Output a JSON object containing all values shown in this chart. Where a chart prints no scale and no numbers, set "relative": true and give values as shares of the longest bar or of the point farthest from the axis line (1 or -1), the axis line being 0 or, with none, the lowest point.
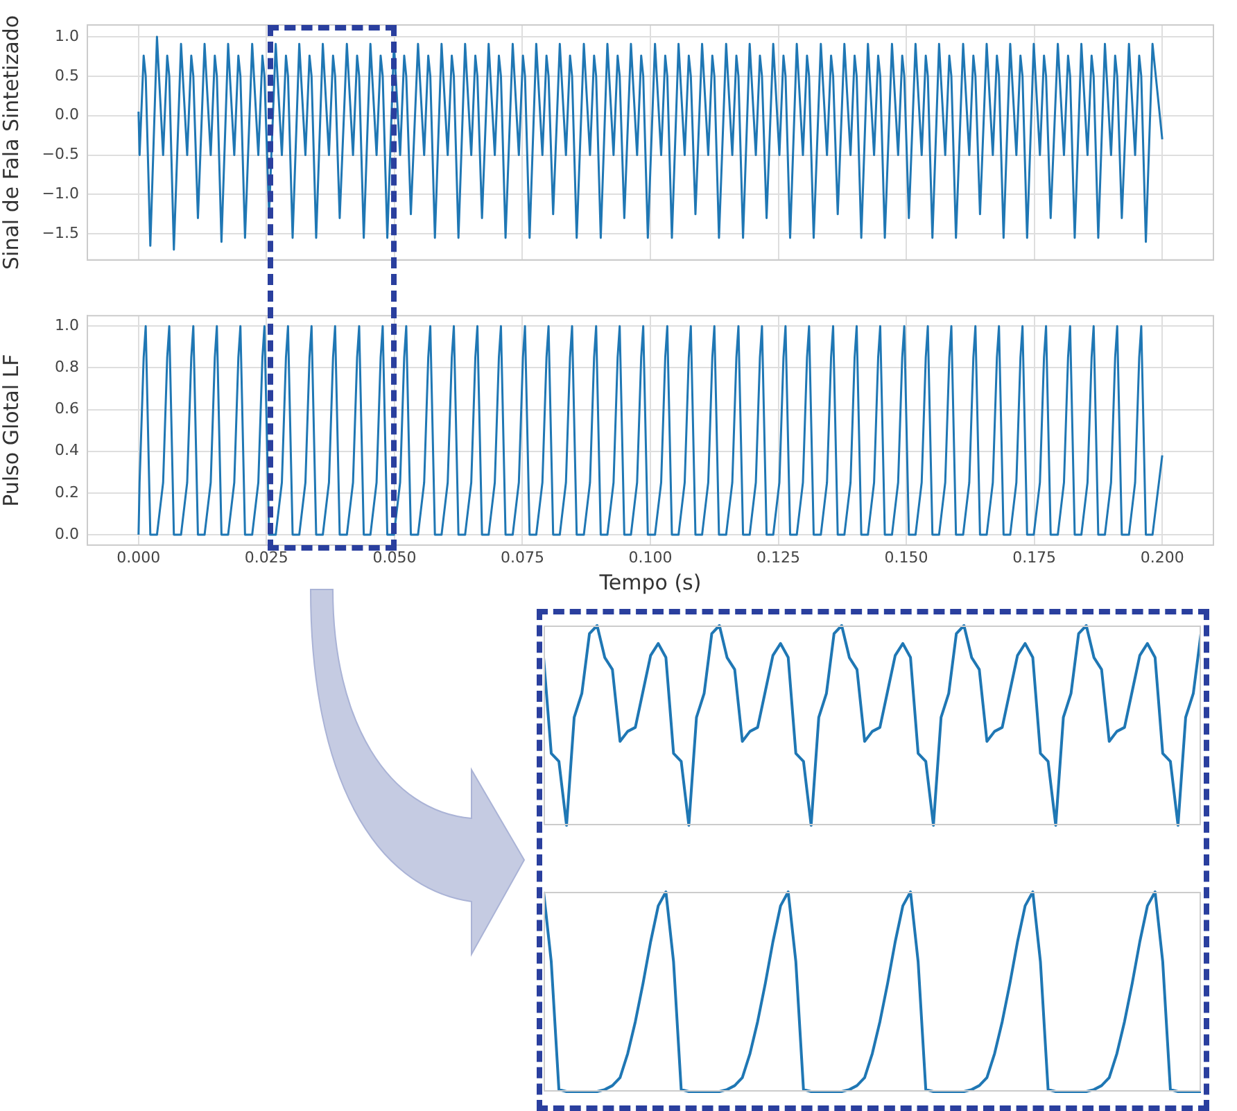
{
  "chart_data": [
    {
      "type": "line",
      "ylabel": "Sinal de Fala Sintetizado",
      "xlim": [
        -0.01,
        0.21
      ],
      "ylim": [
        -1.83,
        1.15
      ],
      "tick_labels": "y",
      "grid": true,
      "marker": "none",
      "xticks": [
        0,
        0.025,
        0.05,
        0.075,
        0.1,
        0.125,
        0.15,
        0.175,
        0.2
      ],
      "yticks": [
        {
          "value": -1.5,
          "label": "−1.5"
        },
        {
          "value": -1,
          "label": "−1.0"
        },
        {
          "value": -0.5,
          "label": "−0.5"
        },
        {
          "value": 0,
          "label": "0.0"
        },
        {
          "value": 0.5,
          "label": "0.5"
        },
        {
          "value": 1,
          "label": "1.0"
        }
      ],
      "x": [
        0,
        0.0002,
        0.001,
        0.0014,
        0.0023,
        0.0036,
        0.0048,
        0.0056,
        0.006,
        0.0069,
        0.0083,
        0.0095,
        0.0103,
        0.0107,
        0.0116,
        0.0129,
        0.0141,
        0.0149,
        0.0153,
        0.0162,
        0.0175,
        0.0187,
        0.0195,
        0.0199,
        0.0208,
        0.0222,
        0.0234,
        0.0242,
        0.0246,
        0.0255,
        0.0268,
        0.028,
        0.0288,
        0.0292,
        0.0301,
        0.0314,
        0.0326,
        0.0334,
        0.0338,
        0.0347,
        0.036,
        0.0372,
        0.038,
        0.0384,
        0.0393,
        0.0407,
        0.0419,
        0.0427,
        0.0431,
        0.044,
        0.0453,
        0.0465,
        0.0473,
        0.0477,
        0.0486,
        0.0499,
        0.0511,
        0.0519,
        0.0523,
        0.0532,
        0.0546,
        0.0558,
        0.0566,
        0.057,
        0.0579,
        0.0592,
        0.0604,
        0.0612,
        0.0616,
        0.0625,
        0.0638,
        0.065,
        0.0658,
        0.0662,
        0.0671,
        0.0684,
        0.0696,
        0.0704,
        0.0708,
        0.0717,
        0.0731,
        0.0743,
        0.0751,
        0.0755,
        0.0764,
        0.0777,
        0.0789,
        0.0797,
        0.0801,
        0.081,
        0.0823,
        0.0835,
        0.0843,
        0.0847,
        0.0856,
        0.087,
        0.0882,
        0.089,
        0.0894,
        0.0903,
        0.0916,
        0.0928,
        0.0936,
        0.094,
        0.0949,
        0.0962,
        0.0974,
        0.0982,
        0.0986,
        0.0995,
        0.1009,
        0.1021,
        0.1029,
        0.1033,
        0.1042,
        0.1055,
        0.1067,
        0.1075,
        0.1079,
        0.1088,
        0.1101,
        0.1113,
        0.1121,
        0.1125,
        0.1134,
        0.1148,
        0.116,
        0.1168,
        0.1172,
        0.1181,
        0.1194,
        0.1206,
        0.1214,
        0.1218,
        0.1227,
        0.124,
        0.1252,
        0.126,
        0.1264,
        0.1273,
        0.1286,
        0.1298,
        0.1306,
        0.131,
        0.1319,
        0.1333,
        0.1345,
        0.1353,
        0.1357,
        0.1366,
        0.1379,
        0.1391,
        0.1399,
        0.1403,
        0.1412,
        0.1425,
        0.1437,
        0.1445,
        0.1449,
        0.1458,
        0.1472,
        0.1484,
        0.1492,
        0.1496,
        0.1505,
        0.1518,
        0.153,
        0.1538,
        0.1542,
        0.1551,
        0.1564,
        0.1576,
        0.1584,
        0.1588,
        0.1597,
        0.1611,
        0.1623,
        0.1631,
        0.1635,
        0.1644,
        0.1657,
        0.1669,
        0.1677,
        0.1681,
        0.169,
        0.1703,
        0.1715,
        0.1723,
        0.1727,
        0.1736,
        0.1749,
        0.1761,
        0.1769,
        0.1773,
        0.1782,
        0.1796,
        0.1808,
        0.1816,
        0.182,
        0.1829,
        0.1842,
        0.1854,
        0.1862,
        0.1866,
        0.1875,
        0.1888,
        0.19,
        0.1908,
        0.1912,
        0.1921,
        0.1935,
        0.1947,
        0.1955,
        0.1959,
        0.1968,
        0.1981,
        0.2
      ],
      "series": [
        {
          "color": "#1f77b4",
          "values": [
            0.05,
            -0.5,
            0.76,
            0.5,
            -1.65,
            1.0,
            -0.5,
            0.76,
            0.5,
            -1.7,
            0.91,
            -0.5,
            0.76,
            0.5,
            -1.3,
            0.91,
            -0.5,
            0.76,
            0.5,
            -1.6,
            0.91,
            -0.5,
            0.76,
            0.5,
            -1.55,
            0.91,
            -0.5,
            0.76,
            0.5,
            -1.25,
            0.91,
            -0.5,
            0.76,
            0.5,
            -1.55,
            0.91,
            -0.5,
            0.76,
            0.5,
            -1.55,
            0.91,
            -0.5,
            0.76,
            0.5,
            -1.3,
            0.91,
            -0.5,
            0.76,
            0.5,
            -1.55,
            0.91,
            -0.5,
            0.76,
            0.5,
            -1.55,
            0.91,
            -0.5,
            0.76,
            0.5,
            -1.25,
            0.91,
            -0.5,
            0.76,
            0.5,
            -1.55,
            0.91,
            -0.5,
            0.76,
            0.5,
            -1.55,
            0.91,
            -0.5,
            0.76,
            0.5,
            -1.3,
            0.91,
            -0.5,
            0.76,
            0.5,
            -1.55,
            0.91,
            -0.5,
            0.76,
            0.5,
            -1.55,
            0.91,
            -0.5,
            0.76,
            0.5,
            -1.25,
            0.91,
            -0.5,
            0.76,
            0.5,
            -1.55,
            0.91,
            -0.5,
            0.76,
            0.5,
            -1.55,
            0.91,
            -0.5,
            0.76,
            0.5,
            -1.3,
            0.91,
            -0.5,
            0.76,
            0.5,
            -1.55,
            0.91,
            -0.5,
            0.76,
            0.5,
            -1.55,
            0.91,
            -0.5,
            0.76,
            0.5,
            -1.25,
            0.91,
            -0.5,
            0.76,
            0.5,
            -1.55,
            0.91,
            -0.5,
            0.76,
            0.5,
            -1.55,
            0.91,
            -0.5,
            0.76,
            0.5,
            -1.3,
            0.91,
            -0.5,
            0.76,
            0.5,
            -1.55,
            0.91,
            -0.5,
            0.76,
            0.5,
            -1.55,
            0.91,
            -0.5,
            0.76,
            0.5,
            -1.25,
            0.91,
            -0.5,
            0.76,
            0.5,
            -1.55,
            0.91,
            -0.5,
            0.76,
            0.5,
            -1.55,
            0.91,
            -0.5,
            0.76,
            0.5,
            -1.3,
            0.91,
            -0.5,
            0.76,
            0.5,
            -1.55,
            0.91,
            -0.5,
            0.76,
            0.5,
            -1.55,
            0.91,
            -0.5,
            0.76,
            0.5,
            -1.25,
            0.91,
            -0.5,
            0.76,
            0.5,
            -1.55,
            0.91,
            -0.5,
            0.76,
            0.5,
            -1.55,
            0.91,
            -0.5,
            0.76,
            0.5,
            -1.3,
            0.91,
            -0.5,
            0.76,
            0.5,
            -1.55,
            0.91,
            -0.5,
            0.76,
            0.5,
            -1.55,
            0.91,
            -0.5,
            0.76,
            0.5,
            -1.3,
            0.91,
            -0.5,
            0.76,
            0.5,
            -1.6,
            0.91,
            -0.3
          ]
        }
      ]
    },
    {
      "type": "line",
      "ylabel": "Pulso Glotal LF",
      "xlabel": "Tempo (s)",
      "xlim": [
        -0.01,
        0.21
      ],
      "ylim": [
        -0.05,
        1.05
      ],
      "grid": true,
      "marker": "none",
      "xticks": [
        {
          "value": 0,
          "label": "0.000"
        },
        {
          "value": 0.025,
          "label": "0.025"
        },
        {
          "value": 0.05,
          "label": "0.050"
        },
        {
          "value": 0.075,
          "label": "0.075"
        },
        {
          "value": 0.1,
          "label": "0.100"
        },
        {
          "value": 0.125,
          "label": "0.125"
        },
        {
          "value": 0.15,
          "label": "0.150"
        },
        {
          "value": 0.175,
          "label": "0.175"
        },
        {
          "value": 0.2,
          "label": "0.200"
        }
      ],
      "yticks": [
        {
          "value": 0,
          "label": "0.0"
        },
        {
          "value": 0.2,
          "label": "0.2"
        },
        {
          "value": 0.4,
          "label": "0.4"
        },
        {
          "value": 0.6,
          "label": "0.6"
        },
        {
          "value": 0.8,
          "label": "0.8"
        },
        {
          "value": 1,
          "label": "1.0"
        }
      ],
      "x": [
        0,
        0.0002,
        0.001,
        0.0014,
        0.0023,
        0.0036,
        0.0048,
        0.0056,
        0.006,
        0.0069,
        0.0083,
        0.0095,
        0.0103,
        0.0107,
        0.0116,
        0.0129,
        0.0141,
        0.0149,
        0.0153,
        0.0162,
        0.0175,
        0.0187,
        0.0195,
        0.0199,
        0.0208,
        0.0222,
        0.0234,
        0.0242,
        0.0246,
        0.0255,
        0.0268,
        0.028,
        0.0288,
        0.0292,
        0.0301,
        0.0314,
        0.0326,
        0.0334,
        0.0338,
        0.0347,
        0.036,
        0.0372,
        0.038,
        0.0384,
        0.0393,
        0.0407,
        0.0419,
        0.0427,
        0.0431,
        0.044,
        0.0453,
        0.0465,
        0.0473,
        0.0477,
        0.0486,
        0.0499,
        0.0511,
        0.0519,
        0.0523,
        0.0532,
        0.0546,
        0.0558,
        0.0566,
        0.057,
        0.0579,
        0.0592,
        0.0604,
        0.0612,
        0.0616,
        0.0625,
        0.0638,
        0.065,
        0.0658,
        0.0662,
        0.0671,
        0.0684,
        0.0696,
        0.0704,
        0.0708,
        0.0717,
        0.0731,
        0.0743,
        0.0751,
        0.0755,
        0.0764,
        0.0777,
        0.0789,
        0.0797,
        0.0801,
        0.081,
        0.0823,
        0.0835,
        0.0843,
        0.0847,
        0.0856,
        0.087,
        0.0882,
        0.089,
        0.0894,
        0.0903,
        0.0916,
        0.0928,
        0.0936,
        0.094,
        0.0949,
        0.0962,
        0.0974,
        0.0982,
        0.0986,
        0.0995,
        0.1009,
        0.1021,
        0.1029,
        0.1033,
        0.1042,
        0.1055,
        0.1067,
        0.1075,
        0.1079,
        0.1088,
        0.1101,
        0.1113,
        0.1121,
        0.1125,
        0.1134,
        0.1148,
        0.116,
        0.1168,
        0.1172,
        0.1181,
        0.1194,
        0.1206,
        0.1214,
        0.1218,
        0.1227,
        0.124,
        0.1252,
        0.126,
        0.1264,
        0.1273,
        0.1286,
        0.1298,
        0.1306,
        0.131,
        0.1319,
        0.1333,
        0.1345,
        0.1353,
        0.1357,
        0.1366,
        0.1379,
        0.1391,
        0.1399,
        0.1403,
        0.1412,
        0.1425,
        0.1437,
        0.1445,
        0.1449,
        0.1458,
        0.1472,
        0.1484,
        0.1492,
        0.1496,
        0.1505,
        0.1518,
        0.153,
        0.1538,
        0.1542,
        0.1551,
        0.1564,
        0.1576,
        0.1584,
        0.1588,
        0.1597,
        0.1611,
        0.1623,
        0.1631,
        0.1635,
        0.1644,
        0.1657,
        0.1669,
        0.1677,
        0.1681,
        0.169,
        0.1703,
        0.1715,
        0.1723,
        0.1727,
        0.1736,
        0.1749,
        0.1761,
        0.1769,
        0.1773,
        0.1782,
        0.1796,
        0.1808,
        0.1816,
        0.182,
        0.1829,
        0.1842,
        0.1854,
        0.1862,
        0.1866,
        0.1875,
        0.1888,
        0.19,
        0.1908,
        0.1912,
        0.1921,
        0.1935,
        0.1947,
        0.1955,
        0.1959,
        0.1968,
        0.1981,
        0.2
      ],
      "series": [
        {
          "color": "#1f77b4",
          "values": [
            0,
            0.25,
            0.85,
            1,
            0,
            0,
            0.25,
            0.85,
            1,
            0,
            0,
            0.25,
            0.85,
            1,
            0,
            0,
            0.25,
            0.85,
            1,
            0,
            0,
            0.25,
            0.85,
            1,
            0,
            0,
            0.25,
            0.85,
            1,
            0,
            0,
            0.25,
            0.85,
            1,
            0,
            0,
            0.25,
            0.85,
            1,
            0,
            0,
            0.25,
            0.85,
            1,
            0,
            0,
            0.25,
            0.85,
            1,
            0,
            0,
            0.25,
            0.85,
            1,
            0,
            0,
            0.25,
            0.85,
            1,
            0,
            0,
            0.25,
            0.85,
            1,
            0,
            0,
            0.25,
            0.85,
            1,
            0,
            0,
            0.25,
            0.85,
            1,
            0,
            0,
            0.25,
            0.85,
            1,
            0,
            0,
            0.25,
            0.85,
            1,
            0,
            0,
            0.25,
            0.85,
            1,
            0,
            0,
            0.25,
            0.85,
            1,
            0,
            0,
            0.25,
            0.85,
            1,
            0,
            0,
            0.25,
            0.85,
            1,
            0,
            0,
            0.25,
            0.85,
            1,
            0,
            0,
            0.25,
            0.85,
            1,
            0,
            0,
            0.25,
            0.85,
            1,
            0,
            0,
            0.25,
            0.85,
            1,
            0,
            0,
            0.25,
            0.85,
            1,
            0,
            0,
            0.25,
            0.85,
            1,
            0,
            0,
            0.25,
            0.85,
            1,
            0,
            0,
            0.25,
            0.85,
            1,
            0,
            0,
            0.25,
            0.85,
            1,
            0,
            0,
            0.25,
            0.85,
            1,
            0,
            0,
            0.25,
            0.85,
            1,
            0,
            0,
            0.25,
            0.85,
            1,
            0,
            0,
            0.25,
            0.85,
            1,
            0,
            0,
            0.25,
            0.85,
            1,
            0,
            0,
            0.25,
            0.85,
            1,
            0,
            0,
            0.25,
            0.85,
            1,
            0,
            0,
            0.25,
            0.85,
            1,
            0,
            0,
            0.25,
            0.85,
            1,
            0,
            0,
            0.25,
            0.85,
            1,
            0,
            0,
            0.25,
            0.85,
            1,
            0,
            0,
            0.25,
            0.85,
            1,
            0,
            0,
            0.25,
            0.85,
            1,
            0,
            0,
            0.38
          ]
        }
      ]
    },
    {
      "type": "line",
      "relative": true,
      "tick_labels": false,
      "marker": "none",
      "categories": [
        null,
        null,
        null,
        null,
        null,
        null,
        null,
        null,
        null,
        null,
        null,
        null,
        null,
        null,
        null,
        null,
        null,
        null,
        null,
        null,
        null,
        null,
        null,
        null,
        null,
        null,
        null,
        null,
        null,
        null,
        null,
        null,
        null,
        null,
        null,
        null,
        null,
        null,
        null,
        null,
        null,
        null,
        null,
        null,
        null,
        null,
        null,
        null,
        null,
        null,
        null,
        null,
        null,
        null,
        null,
        null,
        null,
        null,
        null,
        null,
        null,
        null,
        null,
        null,
        null,
        null,
        null,
        null,
        null,
        null,
        null,
        null,
        null,
        null,
        null,
        null,
        null,
        null,
        null,
        null,
        null,
        null,
        null,
        null,
        null,
        null,
        null
      ],
      "series": [
        {
          "color": "#1f77b4",
          "values": [
            0.84,
            0.36,
            0.32,
            0,
            0.54,
            0.66,
            0.96,
            1,
            0.84,
            0.78,
            0.42,
            0.47,
            0.49,
            0.67,
            0.85,
            0.91,
            0.84,
            0.36,
            0.32,
            0,
            0.54,
            0.66,
            0.96,
            1,
            0.84,
            0.78,
            0.42,
            0.47,
            0.49,
            0.67,
            0.85,
            0.91,
            0.84,
            0.36,
            0.32,
            0,
            0.54,
            0.66,
            0.96,
            1,
            0.84,
            0.78,
            0.42,
            0.47,
            0.49,
            0.67,
            0.85,
            0.91,
            0.84,
            0.36,
            0.32,
            0,
            0.54,
            0.66,
            0.96,
            1,
            0.84,
            0.78,
            0.42,
            0.47,
            0.49,
            0.67,
            0.85,
            0.91,
            0.84,
            0.36,
            0.32,
            0,
            0.54,
            0.66,
            0.96,
            1,
            0.84,
            0.78,
            0.42,
            0.47,
            0.49,
            0.67,
            0.85,
            0.91,
            0.84,
            0.36,
            0.32,
            0,
            0.54,
            0.66,
            0.96
          ]
        }
      ]
    },
    {
      "type": "line",
      "relative": true,
      "tick_labels": false,
      "marker": "none",
      "categories": [
        null,
        null,
        null,
        null,
        null,
        null,
        null,
        null,
        null,
        null,
        null,
        null,
        null,
        null,
        null,
        null,
        null,
        null,
        null,
        null,
        null,
        null,
        null,
        null,
        null,
        null,
        null,
        null,
        null,
        null,
        null,
        null,
        null,
        null,
        null,
        null,
        null,
        null,
        null,
        null,
        null,
        null,
        null,
        null,
        null,
        null,
        null,
        null,
        null,
        null,
        null,
        null,
        null,
        null,
        null,
        null,
        null,
        null,
        null,
        null,
        null,
        null,
        null,
        null,
        null,
        null,
        null,
        null,
        null,
        null,
        null,
        null,
        null,
        null,
        null,
        null,
        null,
        null,
        null,
        null,
        null,
        null,
        null,
        null,
        null,
        null,
        null
      ],
      "series": [
        {
          "color": "#1f77b4",
          "values": [
            1,
            0.65,
            0.01,
            0,
            0,
            0,
            0,
            0,
            0.01,
            0.03,
            0.07,
            0.19,
            0.35,
            0.54,
            0.75,
            0.93,
            1,
            0.65,
            0.01,
            0,
            0,
            0,
            0,
            0,
            0.01,
            0.03,
            0.07,
            0.19,
            0.35,
            0.54,
            0.75,
            0.93,
            1,
            0.65,
            0.01,
            0,
            0,
            0,
            0,
            0,
            0.01,
            0.03,
            0.07,
            0.19,
            0.35,
            0.54,
            0.75,
            0.93,
            1,
            0.65,
            0.01,
            0,
            0,
            0,
            0,
            0,
            0.01,
            0.03,
            0.07,
            0.19,
            0.35,
            0.54,
            0.75,
            0.93,
            1,
            0.65,
            0.01,
            0,
            0,
            0,
            0,
            0,
            0.01,
            0.03,
            0.07,
            0.19,
            0.35,
            0.54,
            0.75,
            0.93,
            1,
            0.65,
            0.01,
            0,
            0,
            0,
            0
          ]
        }
      ]
    }
  ]
}
